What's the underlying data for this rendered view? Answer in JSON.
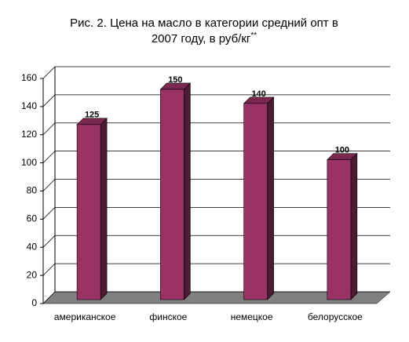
{
  "chart_data": {
    "type": "bar3d",
    "title": [
      "Рис. 2. Цена на масло в категории средний опт в",
      "2007 году, в руб/кг"
    ],
    "title_note": "**",
    "categories": [
      "американское",
      "финское",
      "немецкое",
      "белорусское"
    ],
    "values": [
      125,
      150,
      140,
      100
    ],
    "color": "#993366",
    "ylim": [
      0,
      160
    ],
    "yticks": [
      0,
      20,
      40,
      60,
      80,
      100,
      120,
      140,
      160
    ],
    "grid": true
  }
}
